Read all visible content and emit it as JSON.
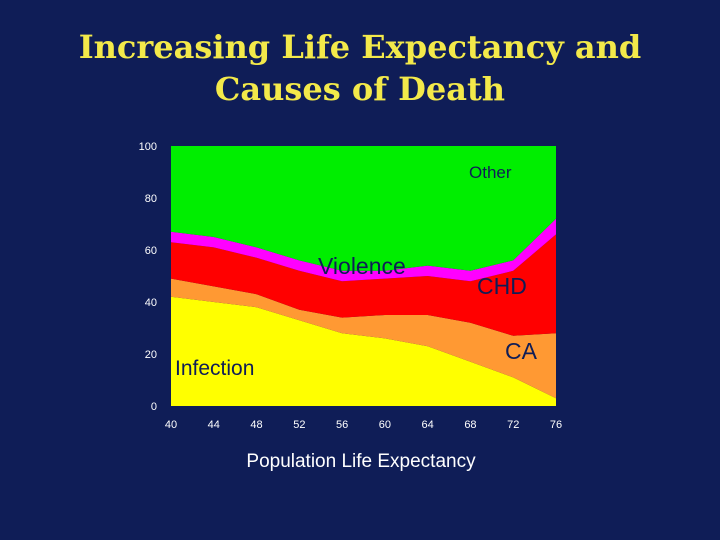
{
  "slide": {
    "title_line1": "Increasing Life Expectancy and",
    "title_line2": "Causes of Death"
  },
  "chart_data": {
    "type": "area",
    "stacked": true,
    "title": "Increasing Life Expectancy and Causes of Death",
    "xlabel": "Population Life Expectancy",
    "ylabel": "",
    "x": [
      40,
      44,
      48,
      52,
      56,
      60,
      64,
      68,
      72,
      76
    ],
    "xticks": [
      "40",
      "44",
      "48",
      "52",
      "56",
      "60",
      "64",
      "68",
      "72",
      "76"
    ],
    "yticks": [
      "0",
      "20",
      "40",
      "60",
      "80",
      "100"
    ],
    "xlim": [
      40,
      76
    ],
    "ylim": [
      0,
      100
    ],
    "series": [
      {
        "name": "Infection",
        "color": "#ffff00",
        "values": [
          42,
          40,
          38,
          33,
          28,
          26,
          23,
          17,
          11,
          3
        ]
      },
      {
        "name": "CA",
        "color": "#ff9933",
        "values": [
          7,
          6,
          5,
          4,
          6,
          9,
          12,
          15,
          16,
          25
        ]
      },
      {
        "name": "CHD",
        "color": "#ff0000",
        "values": [
          14,
          15,
          14,
          15,
          14,
          14,
          15,
          16,
          25,
          38
        ]
      },
      {
        "name": "Violence",
        "color": "#ff00ff",
        "values": [
          4,
          4,
          4,
          4,
          4,
          3,
          4,
          4,
          4,
          6
        ]
      },
      {
        "name": "Other",
        "color": "#00ee00",
        "values": [
          33,
          35,
          39,
          44,
          48,
          48,
          46,
          48,
          44,
          28
        ]
      }
    ],
    "labels": {
      "infection": "Infection",
      "ca": "CA",
      "chd": "CHD",
      "violence": "Violence",
      "other": "Other"
    }
  }
}
